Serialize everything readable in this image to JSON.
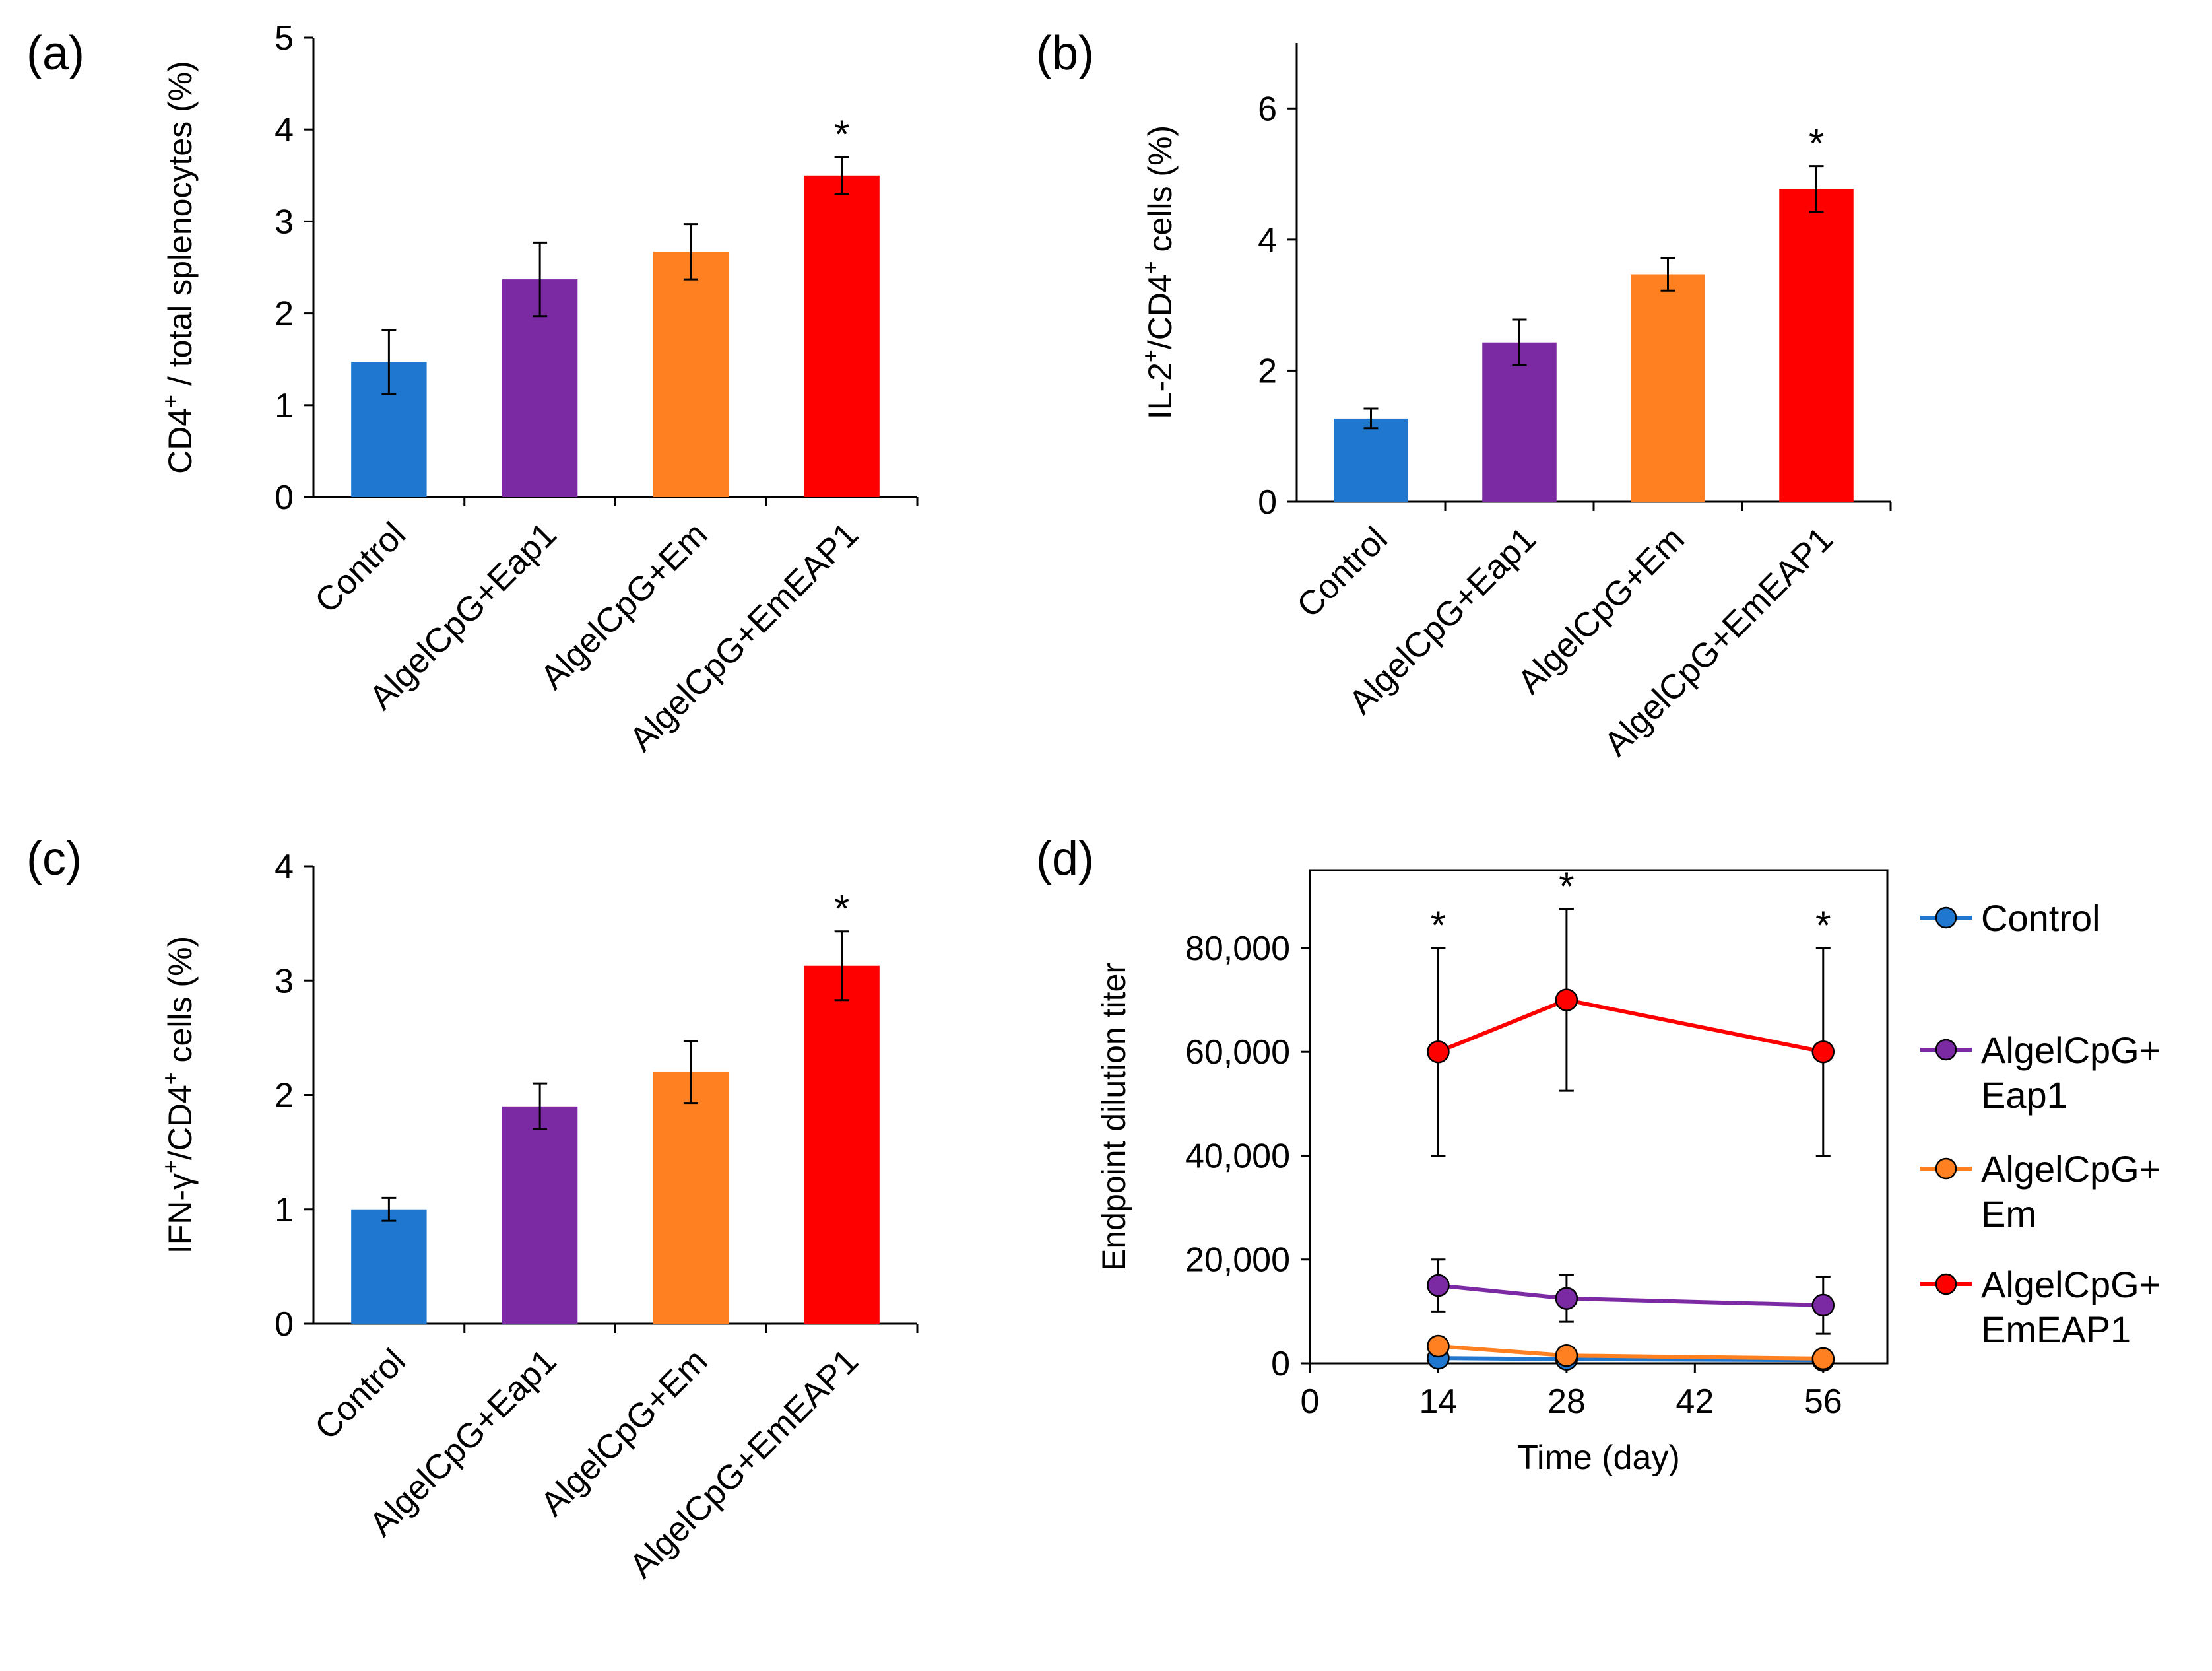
{
  "chart_data": [
    {
      "id": "a",
      "type": "bar",
      "panel_label": "(a)",
      "ylabel_parts": [
        "CD4",
        "+",
        " / total splenocytes (%)"
      ],
      "ylim": [
        0,
        5
      ],
      "yticks": [
        "0",
        "1",
        "2",
        "3",
        "4",
        "5"
      ],
      "categories": [
        "Control",
        "AlgelCpG+Eap1",
        "AlgelCpG+Em",
        "AlgelCpG+EmEAP1"
      ],
      "values": [
        1.47,
        2.37,
        2.67,
        3.5
      ],
      "errors": [
        0.35,
        0.4,
        0.3,
        0.2
      ],
      "colors": [
        "#1f77d0",
        "#7b2aa4",
        "#ff8020",
        "#ff0000"
      ],
      "significance": [
        "",
        "",
        "",
        "*"
      ]
    },
    {
      "id": "b",
      "type": "bar",
      "panel_label": "(b)",
      "ylabel_parts": [
        "IL-2",
        "+",
        "/CD4",
        "+",
        " cells (%)"
      ],
      "ylim": [
        0,
        7
      ],
      "yticks": [
        "0",
        "2",
        "4",
        "6"
      ],
      "categories": [
        "Control",
        "AlgelCpG+Eap1",
        "AlgelCpG+Em",
        "AlgelCpG+EmEAP1"
      ],
      "values": [
        1.27,
        2.43,
        3.47,
        4.77
      ],
      "errors": [
        0.15,
        0.35,
        0.25,
        0.35
      ],
      "colors": [
        "#1f77d0",
        "#7b2aa4",
        "#ff8020",
        "#ff0000"
      ],
      "significance": [
        "",
        "",
        "",
        "*"
      ]
    },
    {
      "id": "c",
      "type": "bar",
      "panel_label": "(c)",
      "ylabel_parts": [
        "IFN-γ",
        "+",
        "/CD4",
        "+",
        " cells (%)"
      ],
      "ylim": [
        0,
        4
      ],
      "yticks": [
        "0",
        "1",
        "2",
        "3",
        "4"
      ],
      "categories": [
        "Control",
        "AlgelCpG+Eap1",
        "AlgelCpG+Em",
        "AlgelCpG+EmEAP1"
      ],
      "values": [
        1.0,
        1.9,
        2.2,
        3.13
      ],
      "errors": [
        0.1,
        0.2,
        0.27,
        0.3
      ],
      "colors": [
        "#1f77d0",
        "#7b2aa4",
        "#ff8020",
        "#ff0000"
      ],
      "significance": [
        "",
        "",
        "",
        "*"
      ]
    },
    {
      "id": "d",
      "type": "line",
      "panel_label": "(d)",
      "xlabel": "Time (day)",
      "ylabel": "Endpoint dilution titer",
      "xlim": [
        0,
        63
      ],
      "xticks": [
        "0",
        "14",
        "28",
        "42",
        "56"
      ],
      "ylim": [
        0,
        95000
      ],
      "yticks": [
        "0",
        "20,000",
        "40,000",
        "60,000",
        "80,000"
      ],
      "x": [
        14,
        28,
        56
      ],
      "series": [
        {
          "name": "Control",
          "legend_lines": [
            "Control"
          ],
          "color": "#1f77d0",
          "values": [
            1000,
            800,
            600
          ],
          "errors": [
            0,
            0,
            0
          ]
        },
        {
          "name": "AlgelCpG+Eap1",
          "legend_lines": [
            "AlgelCpG+",
            "Eap1"
          ],
          "color": "#7b2aa4",
          "values": [
            15000,
            12500,
            11200
          ],
          "errors": [
            5000,
            4500,
            5500
          ]
        },
        {
          "name": "AlgelCpG+Em",
          "legend_lines": [
            "AlgelCpG+",
            "Em"
          ],
          "color": "#ff8020",
          "values": [
            3300,
            1500,
            900
          ],
          "errors": [
            0,
            0,
            0
          ]
        },
        {
          "name": "AlgelCpG+EmEAP1",
          "legend_lines": [
            "AlgelCpG+",
            "EmEAP1"
          ],
          "color": "#ff0000",
          "values": [
            60000,
            70000,
            60000
          ],
          "errors": [
            20000,
            17500,
            20000
          ]
        }
      ],
      "significance": [
        "*",
        "*",
        "*"
      ]
    }
  ]
}
